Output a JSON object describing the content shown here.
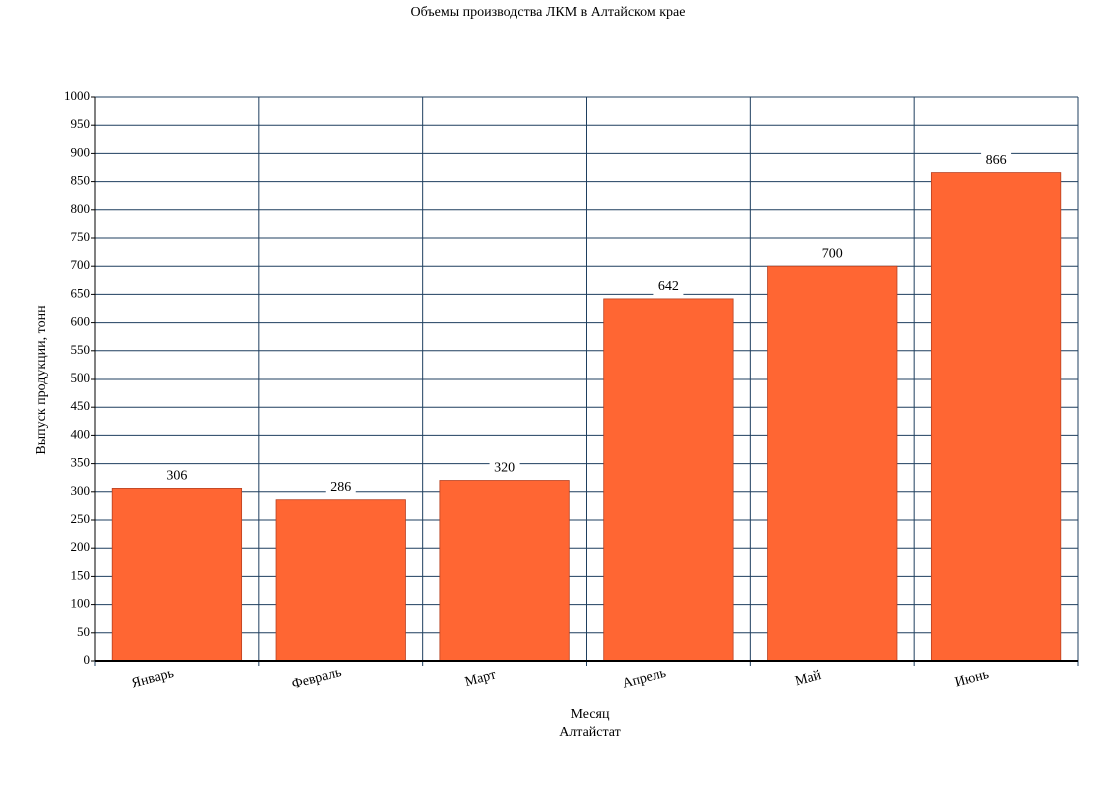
{
  "chart_data": {
    "type": "bar",
    "title": "Объемы производства ЛКМ в Алтайском крае",
    "x_label": "Месяц",
    "source": "Алтайстат",
    "y_label": "Выпуск продукции, тонн",
    "categories": [
      "Январь",
      "Февраль",
      "Март",
      "Апрель",
      "Май",
      "Июнь"
    ],
    "values": [
      306,
      286,
      320,
      642,
      700,
      866
    ],
    "color": "#ff6633",
    "ylim": [
      0,
      1000
    ],
    "yticks": [
      0,
      50,
      100,
      150,
      200,
      250,
      300,
      350,
      400,
      450,
      500,
      550,
      600,
      650,
      700,
      750,
      800,
      850,
      900,
      950,
      1000
    ],
    "grid": true
  }
}
